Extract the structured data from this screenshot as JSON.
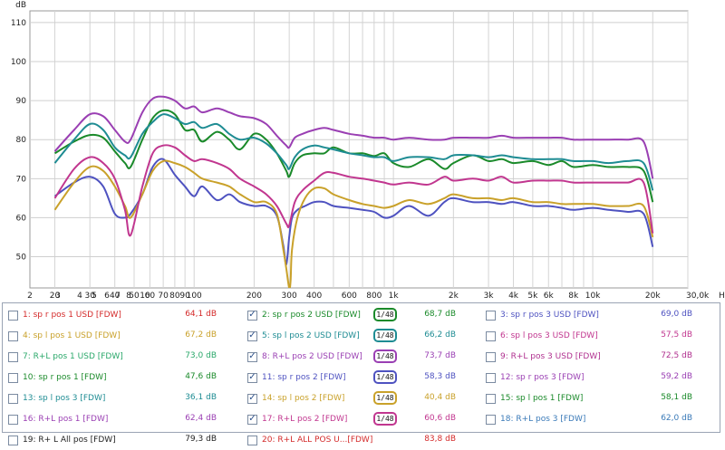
{
  "chart_data": {
    "type": "line",
    "title": "",
    "ylabel": "dB",
    "xlabel": "Hz",
    "xscale": "log",
    "xlim": [
      15,
      30000
    ],
    "ylim": [
      42,
      113
    ],
    "yticks": [
      50,
      60,
      70,
      80,
      90,
      100,
      110
    ],
    "xticks": [
      {
        "v": 20,
        "label": "20"
      },
      {
        "v": 30,
        "label": "30"
      },
      {
        "v": 40,
        "label": "40"
      },
      {
        "v": 50,
        "label": "50"
      },
      {
        "v": 60,
        "label": "60"
      },
      {
        "v": 70,
        "label": "70"
      },
      {
        "v": 80,
        "label": "80"
      },
      {
        "v": 90,
        "label": "90"
      },
      {
        "v": 100,
        "label": "100"
      },
      {
        "v": 200,
        "label": "200"
      },
      {
        "v": 300,
        "label": "300"
      },
      {
        "v": 400,
        "label": "400"
      },
      {
        "v": 600,
        "label": "600"
      },
      {
        "v": 800,
        "label": "800"
      },
      {
        "v": 1000,
        "label": "1k"
      },
      {
        "v": 2000,
        "label": "2k"
      },
      {
        "v": 3000,
        "label": "3k"
      },
      {
        "v": 4000,
        "label": "4k"
      },
      {
        "v": 5000,
        "label": "5k"
      },
      {
        "v": 6000,
        "label": "6k"
      },
      {
        "v": 8000,
        "label": "8k"
      },
      {
        "v": 10000,
        "label": "10k"
      },
      {
        "v": 20000,
        "label": "20k"
      }
    ],
    "xticks_left": [
      {
        "v": 2,
        "label": "2"
      },
      {
        "v": 3,
        "label": "3"
      },
      {
        "v": 4,
        "label": "4"
      },
      {
        "v": 5,
        "label": "5"
      },
      {
        "v": 6,
        "label": "6"
      },
      {
        "v": 7,
        "label": "7"
      },
      {
        "v": 8,
        "label": "8"
      },
      {
        "v": 10,
        "label": "10"
      }
    ],
    "x_end_label": "30,0k",
    "grid": true,
    "series": [
      {
        "id": 2,
        "color": "#1a8a2a",
        "x": [
          20,
          25,
          30,
          35,
          40,
          45,
          48,
          55,
          62,
          70,
          80,
          90,
          100,
          110,
          130,
          150,
          170,
          200,
          230,
          260,
          290,
          300,
          320,
          350,
          400,
          450,
          500,
          600,
          700,
          800,
          900,
          1000,
          1200,
          1500,
          1800,
          2000,
          2500,
          3000,
          3500,
          4000,
          5000,
          6000,
          7000,
          8000,
          10000,
          12000,
          15000,
          18000,
          20000
        ],
        "y": [
          76.5,
          79.5,
          81.2,
          80.5,
          77,
          74,
          73,
          80,
          85.5,
          87.5,
          86.5,
          82.5,
          82.5,
          79.5,
          82,
          80,
          77.5,
          81.5,
          80,
          76.5,
          72,
          70.5,
          74,
          76,
          76.5,
          76.5,
          78,
          76.5,
          76.5,
          75.8,
          76.5,
          74,
          73,
          75,
          72.5,
          74,
          76,
          74.5,
          75,
          74,
          74.5,
          73.5,
          74.5,
          73,
          73.5,
          73,
          73,
          72,
          64
        ]
      },
      {
        "id": 5,
        "color": "#1e8c93",
        "x": [
          20,
          25,
          30,
          35,
          40,
          45,
          48,
          55,
          62,
          70,
          80,
          90,
          100,
          110,
          130,
          150,
          170,
          200,
          230,
          260,
          290,
          300,
          320,
          350,
          400,
          450,
          500,
          600,
          700,
          800,
          900,
          1000,
          1200,
          1500,
          1800,
          2000,
          2500,
          3000,
          3500,
          4000,
          5000,
          6000,
          7000,
          8000,
          10000,
          12000,
          15000,
          18000,
          20000
        ],
        "y": [
          74,
          80,
          84,
          82.5,
          78,
          76,
          75.5,
          81.5,
          84.5,
          86.5,
          85.5,
          84,
          84.5,
          83,
          84,
          81.5,
          80,
          80.5,
          79,
          76.5,
          73.5,
          72.5,
          75.5,
          77.5,
          78.5,
          78,
          77.5,
          76.5,
          76,
          75.5,
          75.5,
          74.5,
          75.5,
          75.5,
          75,
          76,
          76,
          75.5,
          76,
          75.5,
          75,
          75,
          75,
          74.5,
          74.5,
          74,
          74.5,
          74,
          67
        ]
      },
      {
        "id": 8,
        "color": "#9a3fb3",
        "x": [
          20,
          25,
          30,
          35,
          40,
          45,
          48,
          55,
          62,
          70,
          80,
          90,
          100,
          110,
          130,
          150,
          170,
          200,
          230,
          260,
          290,
          300,
          320,
          350,
          400,
          450,
          500,
          600,
          700,
          800,
          900,
          1000,
          1200,
          1500,
          1800,
          2000,
          2500,
          3000,
          3500,
          4000,
          5000,
          6000,
          7000,
          8000,
          10000,
          12000,
          15000,
          18000,
          20000
        ],
        "y": [
          77,
          82.5,
          86.5,
          86,
          82.5,
          79.5,
          80,
          87,
          90.5,
          91,
          90,
          88,
          88.5,
          87,
          88,
          87,
          86,
          85.5,
          84,
          81,
          78.5,
          78,
          80.5,
          81.5,
          82.5,
          83,
          82.5,
          81.5,
          81,
          80.5,
          80.5,
          80,
          80.5,
          80,
          80,
          80.5,
          80.5,
          80.5,
          81,
          80.5,
          80.5,
          80.5,
          80.5,
          80,
          80,
          80,
          80,
          79.5,
          70
        ]
      },
      {
        "id": 11,
        "color": "#4e52c0",
        "x": [
          20,
          25,
          30,
          35,
          40,
          45,
          48,
          55,
          62,
          70,
          80,
          90,
          100,
          110,
          130,
          150,
          170,
          200,
          230,
          260,
          280,
          290,
          300,
          310,
          330,
          360,
          400,
          450,
          500,
          600,
          700,
          800,
          900,
          1000,
          1200,
          1500,
          1800,
          2000,
          2500,
          3000,
          3500,
          4000,
          5000,
          6000,
          7000,
          8000,
          10000,
          12000,
          15000,
          18000,
          20000
        ],
        "y": [
          65.5,
          69,
          70.5,
          68,
          61,
          60,
          61,
          66,
          73,
          75,
          71,
          68,
          65.5,
          68,
          64.5,
          66,
          64,
          63,
          63,
          60.5,
          53,
          48,
          55,
          60,
          62,
          63,
          64,
          64,
          63,
          62.5,
          62,
          61.5,
          60,
          60.5,
          63,
          60.5,
          64,
          65,
          64,
          64,
          63.5,
          64,
          63,
          63,
          62.5,
          62,
          62.5,
          62,
          61.5,
          61,
          52.5
        ]
      },
      {
        "id": 14,
        "color": "#c9a12a",
        "x": [
          20,
          25,
          30,
          35,
          40,
          45,
          48,
          55,
          62,
          70,
          80,
          90,
          100,
          110,
          130,
          150,
          170,
          200,
          230,
          260,
          280,
          290,
          300,
          305,
          310,
          330,
          360,
          400,
          450,
          500,
          600,
          700,
          800,
          900,
          1000,
          1200,
          1500,
          1800,
          2000,
          2500,
          3000,
          3500,
          4000,
          5000,
          6000,
          7000,
          8000,
          10000,
          12000,
          15000,
          18000,
          20000
        ],
        "y": [
          62,
          69,
          73,
          72,
          68,
          63,
          60,
          66,
          72,
          74.5,
          74,
          73,
          71.5,
          70,
          69,
          68,
          66,
          64,
          64,
          61,
          52,
          47,
          42,
          44,
          52,
          60,
          65,
          67.5,
          67.5,
          66,
          64.5,
          63.5,
          63,
          62.5,
          63,
          64.5,
          63.5,
          65,
          66,
          65,
          65,
          64.5,
          65,
          64,
          64,
          63.5,
          63.5,
          63.5,
          63,
          63,
          63,
          55
        ]
      },
      {
        "id": 17,
        "color": "#c1368f",
        "x": [
          20,
          25,
          30,
          35,
          40,
          45,
          48,
          55,
          62,
          70,
          80,
          90,
          100,
          110,
          130,
          150,
          170,
          200,
          230,
          260,
          290,
          300,
          320,
          350,
          400,
          450,
          500,
          600,
          700,
          800,
          900,
          1000,
          1200,
          1500,
          1800,
          2000,
          2500,
          3000,
          3500,
          4000,
          5000,
          6000,
          7000,
          8000,
          10000,
          12000,
          15000,
          18000,
          20000
        ],
        "y": [
          65,
          72.5,
          75.5,
          74,
          70,
          62,
          55.5,
          68,
          76.5,
          78.5,
          78,
          76,
          74.5,
          75,
          74,
          72.5,
          70,
          68,
          66,
          63,
          58.5,
          58,
          64,
          67,
          69.5,
          71.5,
          71.5,
          70.5,
          70,
          69.5,
          69,
          68.5,
          69,
          68.5,
          70.5,
          69.5,
          70,
          69.5,
          70.5,
          69,
          69.5,
          69.5,
          69.5,
          69,
          69,
          69,
          69,
          69,
          56
        ]
      }
    ]
  },
  "legend": {
    "rows": [
      [
        {
          "checked": false,
          "label": "1: sp r pos 1 USD [FDW]",
          "value": "64,1 dB",
          "color": "#d42a2a"
        },
        {
          "checked": true,
          "label": "2: sp r pos 2 USD [FDW]",
          "value": "68,7 dB",
          "color": "#1a8a2a",
          "smooth": "1/48"
        },
        {
          "checked": false,
          "label": "3: sp r pos 3 USD [FDW]",
          "value": "69,0 dB",
          "color": "#4e52c0"
        }
      ],
      [
        {
          "checked": false,
          "label": "4: sp l pos 1 USD [FDW]",
          "value": "67,2 dB",
          "color": "#c9a12a"
        },
        {
          "checked": true,
          "label": "5: sp l pos 2 USD [FDW]",
          "value": "66,2 dB",
          "color": "#1e8c93",
          "smooth": "1/48"
        },
        {
          "checked": false,
          "label": "6: sp l pos 3 USD [FDW]",
          "value": "57,5 dB",
          "color": "#c1368f"
        }
      ],
      [
        {
          "checked": false,
          "label": "7: R+L pos 1 USD [FDW]",
          "value": "73,0 dB",
          "color": "#2aa86a"
        },
        {
          "checked": true,
          "label": "8: R+L pos 2 USD [FDW]",
          "value": "73,7 dB",
          "color": "#9a3fb3",
          "smooth": "1/48"
        },
        {
          "checked": false,
          "label": "9: R+L pos 3 USD [FDW]",
          "value": "72,5 dB",
          "color": "#b0308f"
        }
      ],
      [
        {
          "checked": false,
          "label": "10: sp r pos 1 [FDW]",
          "value": "47,6 dB",
          "color": "#1a8a2a"
        },
        {
          "checked": true,
          "label": "11: sp r pos 2 [FDW]",
          "value": "58,3 dB",
          "color": "#4e52c0",
          "smooth": "1/48"
        },
        {
          "checked": false,
          "label": "12: sp r pos 3 [FDW]",
          "value": "59,2 dB",
          "color": "#9a3fb3"
        }
      ],
      [
        {
          "checked": false,
          "label": "13: sp l pos 3 [FDW]",
          "value": "36,1 dB",
          "color": "#1e8c93"
        },
        {
          "checked": true,
          "label": "14: sp l pos 2 [FDW]",
          "value": "40,4 dB",
          "color": "#c9a12a",
          "smooth": "1/48"
        },
        {
          "checked": false,
          "label": "15: sp l pos 1 [FDW]",
          "value": "58,1 dB",
          "color": "#1a8a2a"
        }
      ],
      [
        {
          "checked": false,
          "label": "16: R+L pos 1 [FDW]",
          "value": "62,4 dB",
          "color": "#9a3fb3"
        },
        {
          "checked": true,
          "label": "17: R+L pos 2 [FDW]",
          "value": "60,6 dB",
          "color": "#c1368f",
          "smooth": "1/48"
        },
        {
          "checked": false,
          "label": "18: R+L pos 3 [FDW]",
          "value": "62,0 dB",
          "color": "#3a7ab8"
        }
      ],
      [
        {
          "checked": false,
          "label": "19: R+ L All pos [FDW]",
          "value": "79,3 dB",
          "color": "#222222"
        },
        {
          "checked": false,
          "label": "20: R+L ALL POS U...[FDW]",
          "value": "83,8 dB",
          "color": "#d42a2a"
        }
      ]
    ]
  }
}
